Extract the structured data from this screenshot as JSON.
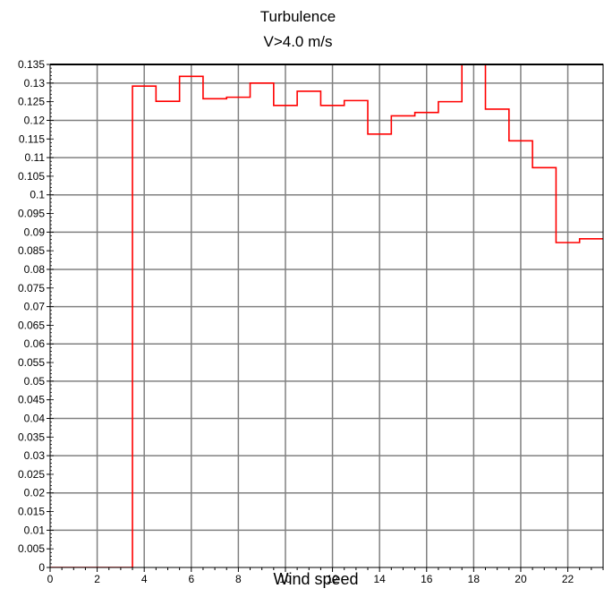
{
  "chart_data": {
    "type": "line",
    "step": true,
    "title": "Turbulence",
    "subtitle": "V>4.0 m/s",
    "xlabel": "Wind speed",
    "ylabel": "",
    "xlim": [
      0,
      23.5
    ],
    "ylim": [
      0,
      0.135
    ],
    "grid": true,
    "x_ticks": [
      0,
      2,
      4,
      6,
      8,
      10,
      12,
      14,
      16,
      18,
      20,
      22
    ],
    "x_tick_labels": [
      "0",
      "2",
      "4",
      "6",
      "8",
      "10",
      "12",
      "14",
      "16",
      "18",
      "20",
      "22"
    ],
    "y_ticks": [
      0,
      0.005,
      0.01,
      0.015,
      0.02,
      0.025,
      0.03,
      0.035,
      0.04,
      0.045,
      0.05,
      0.055,
      0.06,
      0.065,
      0.07,
      0.075,
      0.08,
      0.085,
      0.09,
      0.095,
      0.1,
      0.105,
      0.11,
      0.115,
      0.12,
      0.125,
      0.13,
      0.135
    ],
    "y_tick_labels": [
      "0",
      "0.005",
      "0.01",
      "0.015",
      "0.02",
      "0.025",
      "0.03",
      "0.035",
      "0.04",
      "0.045",
      "0.05",
      "0.055",
      "0.06",
      "0.065",
      "0.07",
      "0.075",
      "0.08",
      "0.085",
      "0.09",
      "0.095",
      "0.1",
      "0.105",
      "0.11",
      "0.115",
      "0.12",
      "0.125",
      "0.13",
      "0.135"
    ],
    "series": [
      {
        "color": "#ff0000",
        "bin_edges": [
          0,
          3.5,
          4.5,
          5.5,
          6.5,
          7.5,
          8.5,
          9.5,
          10.5,
          11.5,
          12.5,
          13.5,
          14.5,
          15.5,
          16.5,
          17.5,
          18.5,
          19.5,
          20.5,
          21.5,
          22.5,
          23.5
        ],
        "values": [
          0,
          0.1292,
          0.1251,
          0.1318,
          0.1258,
          0.1262,
          0.13,
          0.124,
          0.1278,
          0.124,
          0.1253,
          0.1163,
          0.1212,
          0.1221,
          0.125,
          0.14,
          0.123,
          0.1145,
          0.1073,
          0.0872,
          0.0882
        ]
      }
    ]
  }
}
